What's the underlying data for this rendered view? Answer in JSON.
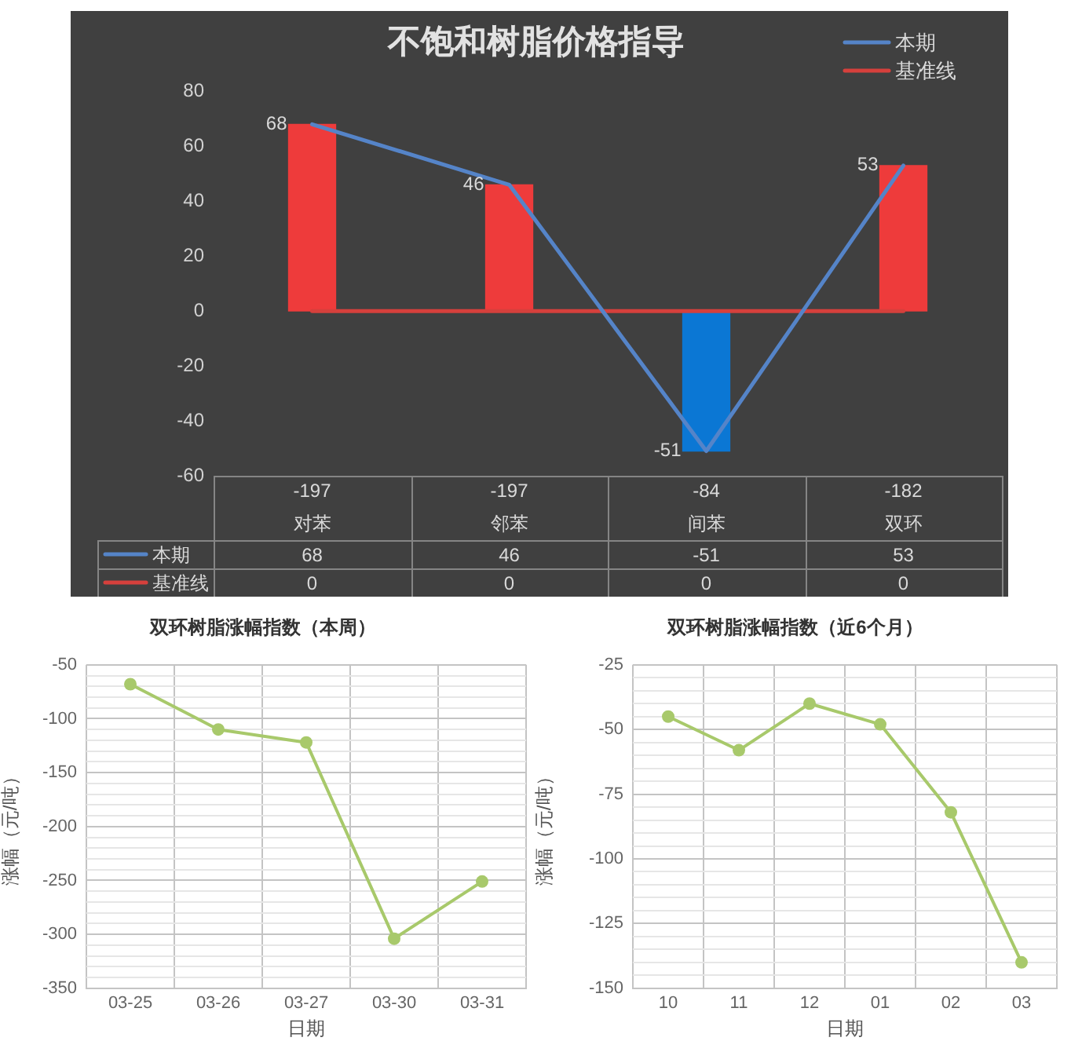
{
  "chart_data": [
    {
      "type": "bar",
      "title": "不饱和树脂价格指导",
      "categories": [
        "-197\n对苯",
        "-197\n邻苯",
        "-84\n间苯",
        "-182\n双环"
      ],
      "series": [
        {
          "type": "bar",
          "colors": [
            "#ee3b3b",
            "#ee3b3b",
            "#0b77d4",
            "#ee3b3b"
          ],
          "values": [
            68,
            46,
            -51,
            53
          ]
        },
        {
          "type": "line",
          "name": "本期",
          "color": "#5584c8",
          "values": [
            68,
            46,
            -51,
            53
          ]
        },
        {
          "type": "line",
          "name": "基准线",
          "color": "#d6403c",
          "values": [
            0,
            0,
            0,
            0
          ]
        }
      ],
      "ylim": [
        -60,
        80
      ],
      "yticks": [
        -60,
        -40,
        -20,
        0,
        20,
        40,
        60,
        80
      ],
      "legend": "top right",
      "data_labels": true,
      "marker": "none"
    },
    {
      "type": "line",
      "title": "双环树脂涨幅指数（本周）",
      "xlabel": "日期",
      "ylabel": "涨幅（元/吨）",
      "categories": [
        "03-25",
        "03-26",
        "03-27",
        "03-30",
        "03-31"
      ],
      "series": [
        {
          "color": "#a8c96b",
          "values": [
            -68,
            -110,
            -122,
            -304,
            -251
          ]
        }
      ],
      "ylim": [
        -350,
        -50
      ],
      "yticks": [
        -350,
        {
          "value": -340,
          "label": null
        },
        {
          "value": -330,
          "label": null
        },
        {
          "value": -320,
          "label": null
        },
        {
          "value": -310,
          "label": null
        },
        -300,
        {
          "value": -290,
          "label": null
        },
        {
          "value": -280,
          "label": null
        },
        {
          "value": -270,
          "label": null
        },
        {
          "value": -260,
          "label": null
        },
        -250,
        {
          "value": -240,
          "label": null
        },
        {
          "value": -230,
          "label": null
        },
        {
          "value": -220,
          "label": null
        },
        {
          "value": -210,
          "label": null
        },
        -200,
        {
          "value": -190,
          "label": null
        },
        {
          "value": -180,
          "label": null
        },
        {
          "value": -170,
          "label": null
        },
        {
          "value": -160,
          "label": null
        },
        -150,
        {
          "value": -140,
          "label": null
        },
        {
          "value": -130,
          "label": null
        },
        {
          "value": -120,
          "label": null
        },
        {
          "value": -110,
          "label": null
        },
        -100,
        {
          "value": -90,
          "label": null
        },
        {
          "value": -80,
          "label": null
        },
        {
          "value": -70,
          "label": null
        },
        {
          "value": -60,
          "label": null
        },
        -50
      ],
      "grid": true,
      "marker": "circle"
    },
    {
      "type": "line",
      "title": "双环树脂涨幅指数（近6个月）",
      "xlabel": "日期",
      "ylabel": "涨幅（元/吨）",
      "categories": [
        "10",
        "11",
        "12",
        "01",
        "02",
        "03"
      ],
      "series": [
        {
          "color": "#a8c96b",
          "values": [
            -45,
            -58,
            -40,
            -48,
            -82,
            -140
          ]
        }
      ],
      "ylim": [
        -150,
        -25
      ],
      "yticks": [
        -150,
        {
          "value": -145,
          "label": null
        },
        {
          "value": -140,
          "label": null
        },
        {
          "value": -135,
          "label": null
        },
        {
          "value": -130,
          "label": null
        },
        -125,
        {
          "value": -120,
          "label": null
        },
        {
          "value": -115,
          "label": null
        },
        {
          "value": -110,
          "label": null
        },
        {
          "value": -105,
          "label": null
        },
        -100,
        {
          "value": -95,
          "label": null
        },
        {
          "value": -90,
          "label": null
        },
        {
          "value": -85,
          "label": null
        },
        {
          "value": -80,
          "label": null
        },
        -75,
        {
          "value": -70,
          "label": null
        },
        {
          "value": -65,
          "label": null
        },
        {
          "value": -60,
          "label": null
        },
        {
          "value": -55,
          "label": null
        },
        -50,
        {
          "value": -45,
          "label": null
        },
        {
          "value": -40,
          "label": null
        },
        {
          "value": -35,
          "label": null
        },
        {
          "value": -30,
          "label": null
        },
        -25
      ],
      "grid": true,
      "marker": "circle"
    }
  ]
}
